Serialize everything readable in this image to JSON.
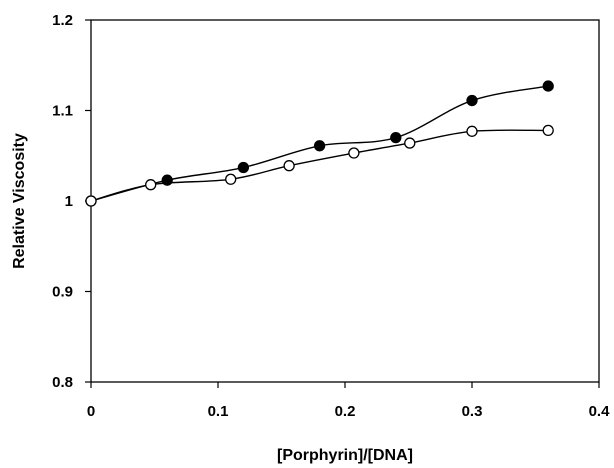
{
  "chart_data": {
    "type": "line",
    "title": "",
    "xlabel": "[Porphyrin]/[DNA]",
    "ylabel": "Relative Viscosity",
    "xlim": [
      0,
      0.4
    ],
    "ylim": [
      0.8,
      1.2
    ],
    "x_ticks": [
      0,
      0.1,
      0.2,
      0.3,
      0.4
    ],
    "x_tick_labels": [
      "0",
      "0.1",
      "0.2",
      "0.3",
      "0.4"
    ],
    "y_ticks": [
      0.8,
      0.9,
      1.0,
      1.1,
      1.2
    ],
    "y_tick_labels": [
      "0.8",
      "0.9",
      "1",
      "1.1",
      "1.2"
    ],
    "grid": false,
    "legend": "none",
    "series": [
      {
        "marker": "filled-circle",
        "color": "#000000",
        "x": [
          0,
          0.06,
          0.12,
          0.18,
          0.24,
          0.3,
          0.36
        ],
        "y": [
          1.0,
          1.023,
          1.037,
          1.061,
          1.07,
          1.111,
          1.127
        ]
      },
      {
        "marker": "open-circle",
        "color": "#000000",
        "x": [
          0,
          0.047,
          0.11,
          0.156,
          0.207,
          0.251,
          0.3,
          0.36
        ],
        "y": [
          1.0,
          1.018,
          1.024,
          1.039,
          1.053,
          1.064,
          1.077,
          1.078
        ]
      }
    ]
  }
}
